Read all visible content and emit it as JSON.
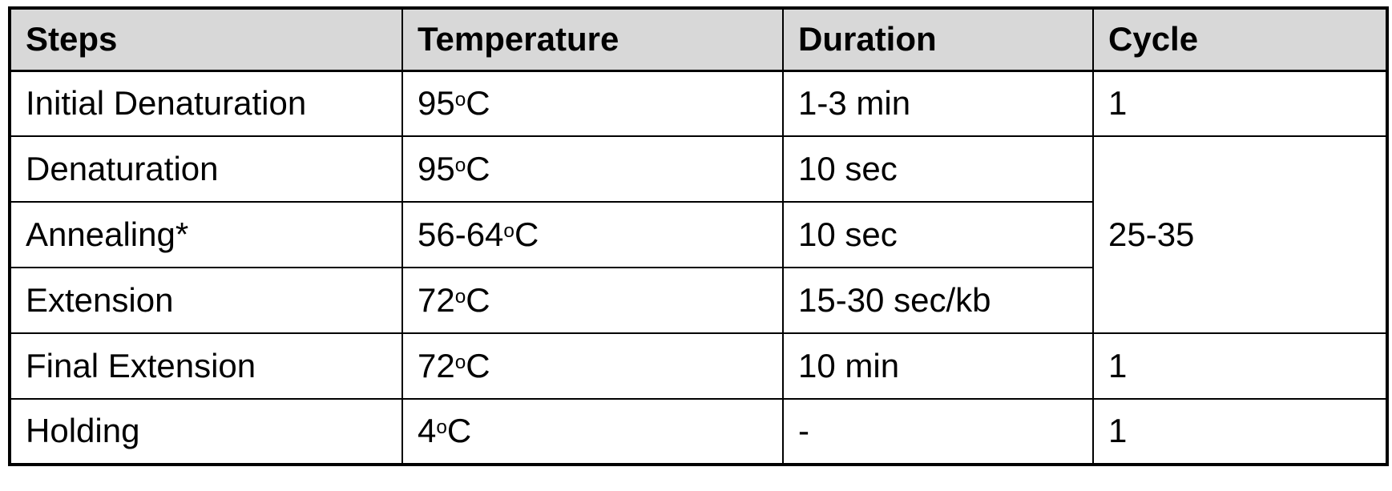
{
  "colors": {
    "header_bg": "#d8d8d8",
    "border": "#000000",
    "text": "#000000",
    "page_bg": "#ffffff"
  },
  "table": {
    "columns": [
      {
        "label": "Steps"
      },
      {
        "label": "Temperature"
      },
      {
        "label": "Duration"
      },
      {
        "label": "Cycle"
      }
    ],
    "rows": [
      {
        "step": "Initial Denaturation",
        "temperature": {
          "value": "95",
          "sup": "o",
          "unit": "C"
        },
        "duration": "1-3 min",
        "cycle": "1"
      },
      {
        "step": "Denaturation",
        "temperature": {
          "value": "95",
          "sup": "o",
          "unit": "C"
        },
        "duration": "10 sec"
      },
      {
        "step": "Annealing*",
        "temperature": {
          "value": "56-64",
          "sup": "o",
          "unit": "C"
        },
        "duration": "10 sec"
      },
      {
        "step": "Extension",
        "temperature": {
          "value": "72",
          "sup": "o",
          "unit": "C"
        },
        "duration": "15-30 sec/kb"
      },
      {
        "step": "Final Extension",
        "temperature": {
          "value": "72",
          "sup": "o",
          "unit": "C"
        },
        "duration": "10 min",
        "cycle": "1"
      },
      {
        "step": "Holding",
        "temperature": {
          "value": "4",
          "sup": "o",
          "unit": "C"
        },
        "duration": "-",
        "cycle": "1"
      }
    ],
    "merged_cycle": {
      "value": "25-35"
    }
  }
}
